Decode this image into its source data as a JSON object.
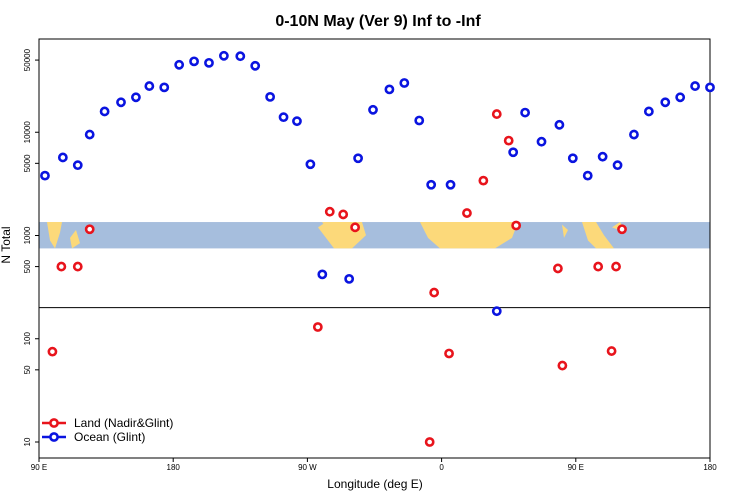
{
  "chart_data": {
    "type": "scatter",
    "title": "0-10N May (Ver 9)   Inf to -Inf",
    "xlabel": "Longitude (deg E)",
    "ylabel": "N Total",
    "y_scale": "log",
    "ylim": [
      7,
      80000
    ],
    "x_ticks": [
      {
        "label": "90 E",
        "value": 90
      },
      {
        "label": "180",
        "value": 180
      },
      {
        "label": "90 W",
        "value": 270
      },
      {
        "label": "0",
        "value": 360
      },
      {
        "label": "90 E",
        "value": 450
      },
      {
        "label": "180",
        "value": 540
      }
    ],
    "xlim": [
      90,
      540
    ],
    "y_ticks": [
      {
        "label": "10",
        "value": 10
      },
      {
        "label": "50",
        "value": 50
      },
      {
        "label": "100",
        "value": 100
      },
      {
        "label": "500",
        "value": 500
      },
      {
        "label": "1000",
        "value": 1000
      },
      {
        "label": "5000",
        "value": 5000
      },
      {
        "label": "10000",
        "value": 10000
      },
      {
        "label": "50000",
        "value": 50000
      }
    ],
    "reference_line": 200,
    "map_band": {
      "y_low": 750,
      "y_high": 1350
    },
    "legend_position": "bottom-left",
    "colors": {
      "land": "#e8141c",
      "ocean": "#0a14e0",
      "band_ocean": "#a6bedd",
      "band_land": "#fcd97a"
    },
    "series": [
      {
        "name": "Land (Nadir&Glint)",
        "color": "#e8141c",
        "points": [
          [
            99,
            75
          ],
          [
            105,
            500
          ],
          [
            116,
            500
          ],
          [
            124,
            1150
          ],
          [
            277,
            130
          ],
          [
            285,
            1700
          ],
          [
            294,
            1600
          ],
          [
            302,
            1200
          ],
          [
            352,
            10
          ],
          [
            355,
            280
          ],
          [
            365,
            72
          ],
          [
            377,
            1650
          ],
          [
            388,
            3400
          ],
          [
            397,
            15000
          ],
          [
            405,
            8300
          ],
          [
            410,
            1250
          ],
          [
            438,
            480
          ],
          [
            441,
            55
          ],
          [
            465,
            500
          ],
          [
            474,
            76
          ],
          [
            477,
            500
          ],
          [
            481,
            1150
          ]
        ]
      },
      {
        "name": "Ocean (Glint)",
        "color": "#0a14e0",
        "points": [
          [
            94,
            3800
          ],
          [
            106,
            5700
          ],
          [
            116,
            4800
          ],
          [
            124,
            9500
          ],
          [
            134,
            15900
          ],
          [
            145,
            19500
          ],
          [
            155,
            21800
          ],
          [
            164,
            28000
          ],
          [
            174,
            27200
          ],
          [
            184,
            45000
          ],
          [
            194,
            48600
          ],
          [
            204,
            47000
          ],
          [
            214,
            55000
          ],
          [
            225,
            54500
          ],
          [
            235,
            44000
          ],
          [
            245,
            22000
          ],
          [
            254,
            14000
          ],
          [
            263,
            12800
          ],
          [
            272,
            4900
          ],
          [
            280,
            420
          ],
          [
            298,
            380
          ],
          [
            304,
            5600
          ],
          [
            314,
            16500
          ],
          [
            325,
            26000
          ],
          [
            335,
            30000
          ],
          [
            345,
            13000
          ],
          [
            353,
            3100
          ],
          [
            366,
            3100
          ],
          [
            397,
            185
          ],
          [
            408,
            6400
          ],
          [
            416,
            15500
          ],
          [
            427,
            8100
          ],
          [
            439,
            11800
          ],
          [
            448,
            5600
          ],
          [
            458,
            3800
          ],
          [
            468,
            5800
          ],
          [
            478,
            4800
          ],
          [
            489,
            9500
          ],
          [
            499,
            15900
          ],
          [
            510,
            19500
          ],
          [
            520,
            21800
          ],
          [
            530,
            28000
          ],
          [
            540,
            27200
          ]
        ]
      }
    ]
  }
}
